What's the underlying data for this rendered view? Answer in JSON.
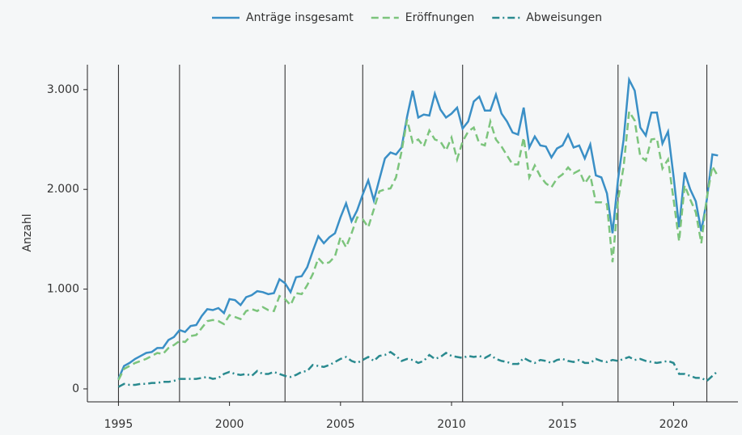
{
  "chart_data": {
    "type": "line",
    "y_label": "Anzahl",
    "legend": "top",
    "x": [
      1995,
      1995.25,
      1995.5,
      1995.75,
      1996,
      1996.25,
      1996.5,
      1996.75,
      1997,
      1997.25,
      1997.5,
      1997.75,
      1998,
      1998.25,
      1998.5,
      1998.75,
      1999,
      1999.25,
      1999.5,
      1999.75,
      2000,
      2000.25,
      2000.5,
      2000.75,
      2001,
      2001.25,
      2001.5,
      2001.75,
      2002,
      2002.25,
      2002.5,
      2002.75,
      2003,
      2003.25,
      2003.5,
      2003.75,
      2004,
      2004.25,
      2004.5,
      2004.75,
      2005,
      2005.25,
      2005.5,
      2005.75,
      2006,
      2006.25,
      2006.5,
      2006.75,
      2007,
      2007.25,
      2007.5,
      2007.75,
      2008,
      2008.25,
      2008.5,
      2008.75,
      2009,
      2009.25,
      2009.5,
      2009.75,
      2010,
      2010.25,
      2010.5,
      2010.75,
      2011,
      2011.25,
      2011.5,
      2011.75,
      2012,
      2012.25,
      2012.5,
      2012.75,
      2013,
      2013.25,
      2013.5,
      2013.75,
      2014,
      2014.25,
      2014.5,
      2014.75,
      2015,
      2015.25,
      2015.5,
      2015.75,
      2016,
      2016.25,
      2016.5,
      2016.75,
      2017,
      2017.25,
      2017.5,
      2017.75,
      2018,
      2018.25,
      2018.5,
      2018.75,
      2019,
      2019.25,
      2019.5,
      2019.75,
      2020,
      2020.25,
      2020.5,
      2020.75,
      2021,
      2021.25,
      2021.5,
      2021.75,
      2022
    ],
    "series": [
      {
        "name": "Anträge insgesamt",
        "color": "#3a8fc6",
        "dash": "solid",
        "values": [
          100,
          230,
          260,
          300,
          330,
          360,
          370,
          410,
          410,
          490,
          520,
          590,
          570,
          630,
          640,
          730,
          800,
          790,
          810,
          760,
          900,
          890,
          840,
          920,
          940,
          980,
          970,
          950,
          960,
          1100,
          1060,
          970,
          1120,
          1130,
          1220,
          1380,
          1530,
          1460,
          1520,
          1560,
          1720,
          1860,
          1680,
          1790,
          1950,
          2090,
          1890,
          2100,
          2310,
          2370,
          2350,
          2420,
          2730,
          2990,
          2720,
          2750,
          2740,
          2960,
          2800,
          2720,
          2760,
          2820,
          2610,
          2680,
          2880,
          2930,
          2790,
          2790,
          2950,
          2760,
          2680,
          2570,
          2550,
          2820,
          2420,
          2530,
          2440,
          2430,
          2320,
          2410,
          2440,
          2550,
          2420,
          2440,
          2310,
          2450,
          2140,
          2120,
          1960,
          1560,
          2100,
          2500,
          3100,
          2990,
          2620,
          2540,
          2770,
          2770,
          2460,
          2580,
          2130,
          1620,
          2170,
          2000,
          1880,
          1580,
          1900,
          2350,
          2340
        ]
      },
      {
        "name": "Eröffnungen",
        "color": "#7cc47c",
        "dash": "dashed",
        "values": [
          90,
          200,
          230,
          260,
          280,
          300,
          330,
          360,
          350,
          410,
          440,
          480,
          470,
          530,
          540,
          610,
          680,
          690,
          680,
          650,
          740,
          720,
          700,
          780,
          800,
          780,
          820,
          790,
          780,
          930,
          900,
          840,
          960,
          950,
          1040,
          1150,
          1310,
          1250,
          1270,
          1330,
          1520,
          1420,
          1560,
          1720,
          1700,
          1620,
          1800,
          1980,
          2000,
          2010,
          2120,
          2380,
          2700,
          2470,
          2500,
          2430,
          2590,
          2500,
          2480,
          2390,
          2520,
          2300,
          2480,
          2580,
          2620,
          2460,
          2440,
          2680,
          2500,
          2430,
          2340,
          2250,
          2250,
          2520,
          2120,
          2240,
          2130,
          2060,
          2020,
          2110,
          2150,
          2220,
          2160,
          2190,
          2060,
          2140,
          1870,
          1870,
          1850,
          1270,
          1890,
          2230,
          2780,
          2690,
          2330,
          2290,
          2500,
          2510,
          2210,
          2300,
          1900,
          1480,
          2040,
          1900,
          1770,
          1460,
          1920,
          2230,
          2130
        ]
      },
      {
        "name": "Abweisungen",
        "color": "#2a8a8f",
        "dash": "dashdot",
        "values": [
          20,
          50,
          40,
          40,
          50,
          50,
          60,
          60,
          70,
          70,
          80,
          100,
          100,
          100,
          100,
          110,
          120,
          100,
          110,
          150,
          170,
          150,
          140,
          150,
          130,
          180,
          150,
          150,
          170,
          150,
          130,
          120,
          140,
          170,
          180,
          240,
          230,
          220,
          240,
          270,
          300,
          320,
          280,
          260,
          290,
          320,
          280,
          330,
          340,
          370,
          330,
          280,
          300,
          290,
          260,
          280,
          340,
          300,
          320,
          360,
          330,
          320,
          310,
          330,
          320,
          330,
          310,
          340,
          300,
          280,
          270,
          250,
          250,
          310,
          280,
          260,
          290,
          280,
          260,
          290,
          300,
          280,
          270,
          290,
          260,
          260,
          300,
          280,
          270,
          290,
          280,
          300,
          320,
          290,
          300,
          280,
          270,
          260,
          270,
          280,
          260,
          150,
          150,
          130,
          110,
          110,
          80,
          130,
          180
        ]
      }
    ],
    "vlines": [
      1995,
      1997.75,
      2002.5,
      2006,
      2010.5,
      2017.5,
      2021.5
    ],
    "xlim": [
      1993.6,
      2022.9
    ],
    "xticks": [
      1995,
      2000,
      2005,
      2010,
      2015,
      2020
    ],
    "ylim": [
      -130,
      3250
    ],
    "yticks": [
      0,
      {
        "value": 1000,
        "label": "1.000"
      },
      {
        "value": 2000,
        "label": "2.000"
      },
      {
        "value": 3000,
        "label": "3.000"
      }
    ]
  }
}
